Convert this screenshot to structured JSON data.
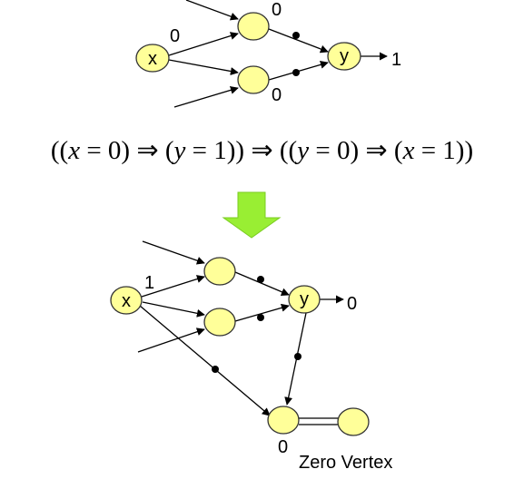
{
  "top_diagram": {
    "x_node_label": "x",
    "y_node_label": "y",
    "label_x_in": "0",
    "label_upper": "0",
    "label_lower": "0",
    "label_y_out": "1"
  },
  "formula": {
    "open": "((",
    "x1": "x",
    "eq1": " = 0) ⇒ (",
    "y1": "y",
    "eq2": " = 1)) ⇒ ((",
    "y2": "y",
    "eq3": " = 0) ⇒ (",
    "x2": "x",
    "eq4": " = 1))"
  },
  "transform_arrow": {
    "color": "#99ee33"
  },
  "bottom_diagram": {
    "x_node_label": "x",
    "y_node_label": "y",
    "label_x_in": "1",
    "label_y_out": "0",
    "label_zero": "0",
    "zero_vertex_caption": "Zero Vertex"
  },
  "colors": {
    "node_fill": "#ffff99",
    "arrow_fill": "#99ee33"
  }
}
